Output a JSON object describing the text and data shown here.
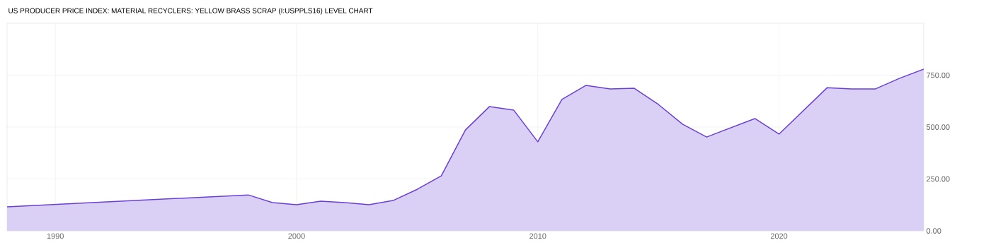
{
  "chart_data": {
    "type": "area",
    "title": "US PRODUCER PRICE INDEX: MATERIAL RECYCLERS: YELLOW BRASS SCRAP (I:USPPLS16) LEVEL CHART",
    "x": [
      1988,
      1998,
      1999,
      2000,
      2001,
      2002,
      2003,
      2004,
      2005,
      2006,
      2007,
      2008,
      2009,
      2010,
      2011,
      2012,
      2013,
      2014,
      2015,
      2016,
      2017,
      2019,
      2020,
      2022,
      2023,
      2024,
      2025,
      2026
    ],
    "values": [
      116,
      173,
      136,
      126,
      143,
      136,
      126,
      146,
      200,
      265,
      486,
      599,
      582,
      429,
      633,
      701,
      684,
      687,
      609,
      514,
      452,
      541,
      466,
      690,
      684,
      684,
      735,
      779
    ],
    "color": "#6a3fd6",
    "xlim": [
      1988,
      2026
    ],
    "xticks": [
      1990,
      2000,
      2010,
      2020
    ],
    "ylim": [
      0,
      1000
    ],
    "yticks": [
      {
        "value": 0,
        "label": "0.00"
      },
      {
        "value": 250,
        "label": "250.00"
      },
      {
        "value": 500,
        "label": "500.00"
      },
      {
        "value": 750,
        "label": "750.00"
      }
    ],
    "grid": true
  }
}
